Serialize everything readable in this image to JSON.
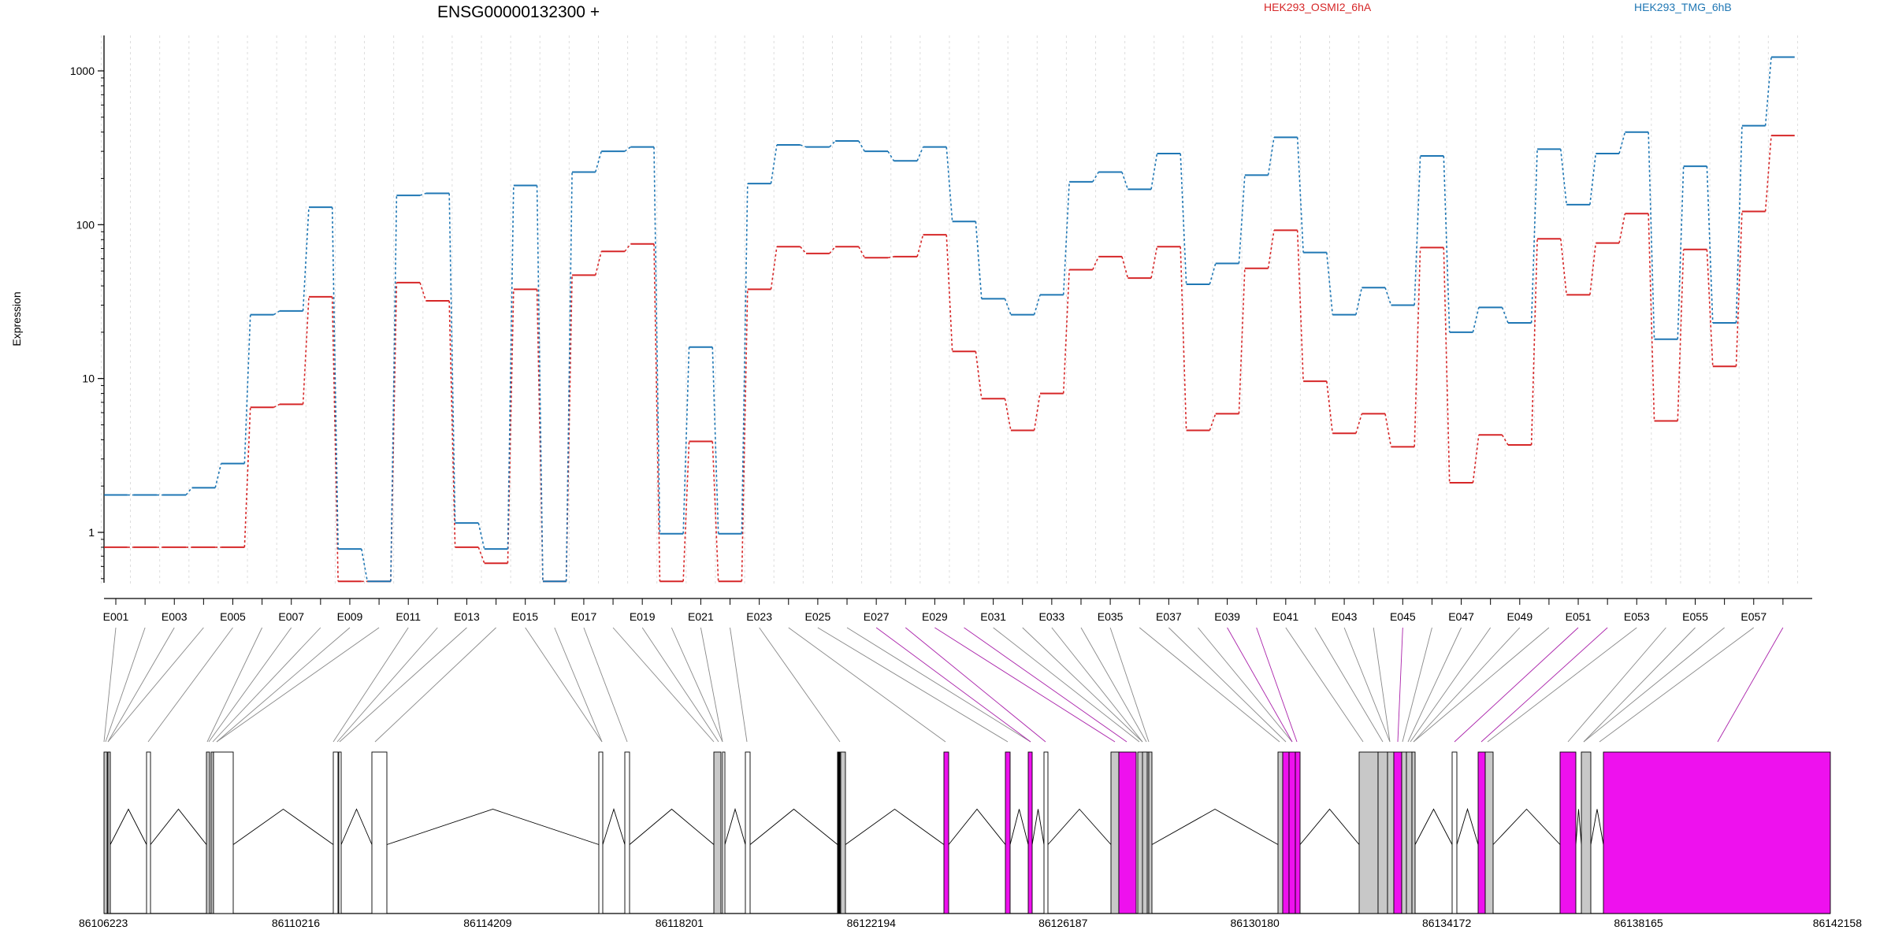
{
  "chart_data": {
    "type": "line",
    "title": "ENSG00000132300 +",
    "ylabel": "Expression",
    "yscale": "log",
    "ylim": [
      0.45,
      1600
    ],
    "yticks": [
      1,
      10,
      100,
      1000
    ],
    "ytick_labels": [
      "1",
      "10",
      "100",
      "1000"
    ],
    "grid": "vertical",
    "legend_position": "top",
    "categories": [
      "E001",
      "E002",
      "E003",
      "E004",
      "E005",
      "E006",
      "E007",
      "E008",
      "E009",
      "E010",
      "E011",
      "E012",
      "E013",
      "E014",
      "E015",
      "E016",
      "E017",
      "E018",
      "E019",
      "E020",
      "E021",
      "E022",
      "E023",
      "E024",
      "E025",
      "E026",
      "E027",
      "E028",
      "E029",
      "E030",
      "E031",
      "E032",
      "E033",
      "E034",
      "E035",
      "E036",
      "E037",
      "E038",
      "E039",
      "E040",
      "E041",
      "E042",
      "E043",
      "E044",
      "E045",
      "E046",
      "E047",
      "E048",
      "E049",
      "E050",
      "E051",
      "E052",
      "E053",
      "E054",
      "E055",
      "E056",
      "E057",
      "E058"
    ],
    "shown_category_labels": [
      "E001",
      "E003",
      "E005",
      "E007",
      "E009",
      "E011",
      "E013",
      "E015",
      "E017",
      "E019",
      "E021",
      "E023",
      "E025",
      "E027",
      "E029",
      "E031",
      "E033",
      "E035",
      "E037",
      "E039",
      "E041",
      "E043",
      "E045",
      "E047",
      "E049",
      "E051",
      "E053",
      "E055",
      "E057"
    ],
    "series": [
      {
        "name": "HEK293_OSMI2_6hA",
        "color": "#d62728",
        "values": [
          0.8,
          0.8,
          0.8,
          0.8,
          0.8,
          6.5,
          6.8,
          34,
          0.48,
          0.48,
          42,
          32,
          0.8,
          0.63,
          38,
          0.48,
          47,
          67,
          75,
          0.48,
          3.9,
          0.48,
          38,
          72,
          65,
          72,
          61,
          62,
          86,
          15,
          7.4,
          4.6,
          8.0,
          51,
          62,
          45,
          72,
          4.6,
          5.9,
          52,
          92,
          9.6,
          4.4,
          5.9,
          3.6,
          71,
          2.1,
          4.3,
          3.7,
          81,
          35,
          76,
          118,
          5.3,
          69,
          12,
          122,
          380
        ]
      },
      {
        "name": "HEK293_TMG_6hB",
        "color": "#1f77b4",
        "values": [
          1.75,
          1.75,
          1.75,
          1.95,
          2.8,
          26,
          27.5,
          130,
          0.78,
          0.48,
          155,
          160,
          1.15,
          0.78,
          180,
          0.48,
          220,
          300,
          320,
          0.98,
          16,
          0.98,
          185,
          330,
          320,
          350,
          300,
          260,
          320,
          105,
          33,
          26,
          35,
          190,
          220,
          170,
          290,
          41,
          56,
          210,
          370,
          66,
          26,
          39,
          30,
          280,
          20,
          29,
          23,
          310,
          135,
          290,
          400,
          18,
          240,
          23,
          440,
          1230
        ]
      }
    ],
    "gene_model": {
      "coordinate_ticks": [
        "86106223",
        "86110216",
        "86114209",
        "86118201",
        "86122194",
        "86126187",
        "86130180",
        "86134172",
        "86138165",
        "86142158"
      ],
      "colors": {
        "constitutive": "#c8c8c8",
        "expressed": "#ffffff",
        "differential": "#ee11ee",
        "outline": "#000000"
      }
    }
  }
}
